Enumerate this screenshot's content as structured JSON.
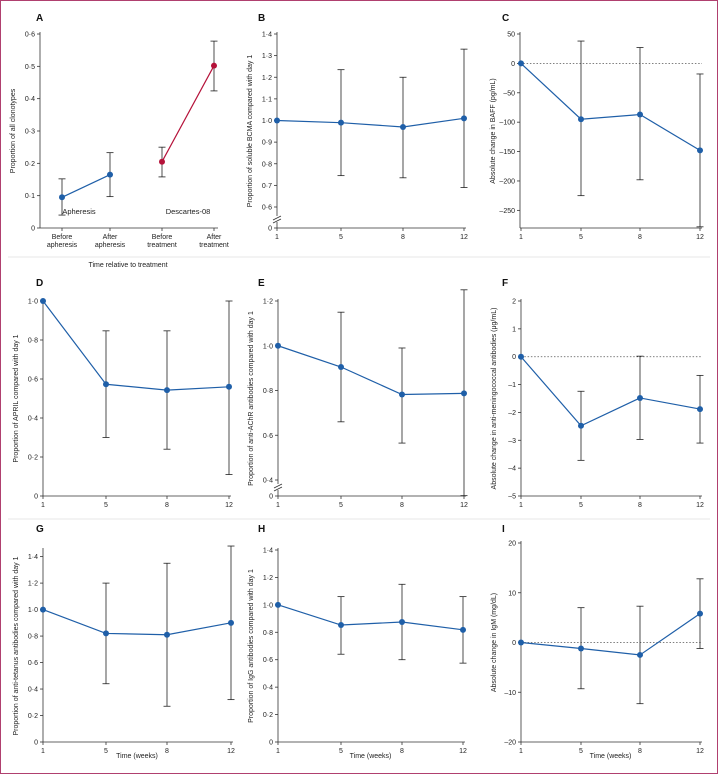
{
  "chart_data": [
    {
      "id": "A",
      "type": "scatter",
      "label": "A",
      "ylabel": "Proportion of all clonotypes",
      "xlabel": "Time relative to treatment",
      "ylim": [
        0,
        0.6
      ],
      "yticks": [
        0,
        0.1,
        0.2,
        0.3,
        0.4,
        0.5,
        0.6
      ],
      "ytick_labels": [
        "0",
        "0·1",
        "0·2",
        "0·3",
        "0·4",
        "0·5",
        "0·6"
      ],
      "categories": [
        "Before|apheresis",
        "After|apheresis",
        "Before|treatment",
        "After|treatment"
      ],
      "series": [
        {
          "name": "Apheresis",
          "color": "#1f5fa8",
          "x": [
            0,
            1
          ],
          "values": [
            0.095,
            0.165
          ],
          "lower": [
            0.04,
            0.097
          ],
          "upper": [
            0.152,
            0.233
          ]
        },
        {
          "name": "Descartes-08",
          "color": "#b5123a",
          "x": [
            2,
            3
          ],
          "values": [
            0.205,
            0.502
          ],
          "lower": [
            0.158,
            0.424
          ],
          "upper": [
            0.25,
            0.578
          ]
        }
      ]
    },
    {
      "id": "B",
      "type": "line",
      "label": "B",
      "ylabel": "Proportion of soluble BCMA compared with day 1",
      "xlabel": "",
      "broken_axis": true,
      "ylim": [
        0.55,
        1.4
      ],
      "yticks": [
        0.6,
        0.7,
        0.8,
        0.9,
        1.0,
        1.1,
        1.2,
        1.3,
        1.4
      ],
      "ytick_labels": [
        "0·6",
        "0·7",
        "0·8",
        "0·9",
        "1·0",
        "1·1",
        "1·2",
        "1·3",
        "1·4"
      ],
      "categories": [
        "1",
        "5",
        "8",
        "12"
      ],
      "series": [
        {
          "color": "#1f5fa8",
          "values": [
            1.0,
            0.99,
            0.97,
            1.01
          ],
          "lower": [
            1.0,
            0.745,
            0.735,
            0.69
          ],
          "upper": [
            1.0,
            1.235,
            1.2,
            1.33
          ]
        }
      ]
    },
    {
      "id": "C",
      "type": "line",
      "label": "C",
      "ylabel": "Absolute change in BAFF (pg/mL)",
      "xlabel": "",
      "ylim": [
        -280,
        50
      ],
      "yticks": [
        50,
        0,
        -50,
        -100,
        -150,
        -200,
        -250
      ],
      "ytick_labels": [
        "50",
        "0",
        "–50",
        "–100",
        "–150",
        "–200",
        "–250"
      ],
      "reference_line": 0,
      "categories": [
        "1",
        "5",
        "8",
        "12"
      ],
      "series": [
        {
          "color": "#1f5fa8",
          "values": [
            0,
            -95,
            -87,
            -148
          ],
          "lower": [
            0,
            -225,
            -198,
            -278
          ],
          "upper": [
            0,
            38,
            27,
            -18
          ]
        }
      ]
    },
    {
      "id": "D",
      "type": "line",
      "label": "D",
      "ylabel": "Proportion of APRIL compared with day 1",
      "xlabel": "",
      "ylim": [
        0,
        1.0
      ],
      "yticks": [
        0,
        0.2,
        0.4,
        0.6,
        0.8,
        1.0
      ],
      "ytick_labels": [
        "0",
        "0·2",
        "0·4",
        "0·6",
        "0·8",
        "1·0"
      ],
      "categories": [
        "1",
        "5",
        "8",
        "12"
      ],
      "series": [
        {
          "color": "#1f5fa8",
          "values": [
            1.0,
            0.573,
            0.543,
            0.56
          ],
          "lower": [
            1.0,
            0.3,
            0.24,
            0.11
          ],
          "upper": [
            1.0,
            0.847,
            0.847,
            1.0
          ]
        }
      ]
    },
    {
      "id": "E",
      "type": "line",
      "label": "E",
      "ylabel": "Proportion of anti-AChR antibodies compared with day 1",
      "xlabel": "",
      "broken_axis": true,
      "ylim": [
        0.3,
        1.3
      ],
      "yticks": [
        0.4,
        0.6,
        0.8,
        1.0,
        1.2
      ],
      "ytick_labels": [
        "0·4",
        "0·6",
        "0·8",
        "1·0",
        "1·2"
      ],
      "categories": [
        "1",
        "5",
        "8",
        "12"
      ],
      "series": [
        {
          "color": "#1f5fa8",
          "values": [
            1.0,
            0.905,
            0.782,
            0.787
          ],
          "lower": [
            1.0,
            0.66,
            0.565,
            0.33
          ],
          "upper": [
            1.0,
            1.15,
            0.99,
            1.25
          ]
        }
      ]
    },
    {
      "id": "F",
      "type": "line",
      "label": "F",
      "ylabel": "Absolute change in anti-meningococcal antibodies (μg/mL)",
      "xlabel": "",
      "ylim": [
        -5,
        2
      ],
      "yticks": [
        2,
        1,
        0,
        -1,
        -2,
        -3,
        -4,
        -5
      ],
      "ytick_labels": [
        "2",
        "1",
        "0",
        "–1",
        "–2",
        "–3",
        "–4",
        "–5"
      ],
      "reference_line": 0,
      "categories": [
        "1",
        "5",
        "8",
        "12"
      ],
      "series": [
        {
          "color": "#1f5fa8",
          "values": [
            0,
            -2.48,
            -1.48,
            -1.88
          ],
          "lower": [
            0,
            -3.72,
            -2.97,
            -3.1
          ],
          "upper": [
            0,
            -1.24,
            0.02,
            -0.67
          ]
        }
      ]
    },
    {
      "id": "G",
      "type": "line",
      "label": "G",
      "ylabel": "Proportion of anti-tetanus antibodies compared with day 1",
      "xlabel": "Time (weeks)",
      "ylim": [
        0,
        1.45
      ],
      "yticks": [
        0,
        0.2,
        0.4,
        0.6,
        0.8,
        1.0,
        1.2,
        1.4
      ],
      "ytick_labels": [
        "0",
        "0·2",
        "0·4",
        "0·6",
        "0·8",
        "1·0",
        "1·2",
        "1·4"
      ],
      "categories": [
        "1",
        "5",
        "8",
        "12"
      ],
      "series": [
        {
          "color": "#1f5fa8",
          "values": [
            1.0,
            0.82,
            0.81,
            0.9
          ],
          "lower": [
            1.0,
            0.44,
            0.27,
            0.32
          ],
          "upper": [
            1.0,
            1.2,
            1.35,
            1.48
          ]
        }
      ]
    },
    {
      "id": "H",
      "type": "line",
      "label": "H",
      "ylabel": "Proportion of IgG antibodies compared with day 1",
      "xlabel": "Time (weeks)",
      "ylim": [
        0,
        1.4
      ],
      "yticks": [
        0,
        0.2,
        0.4,
        0.6,
        0.8,
        1.0,
        1.2,
        1.4
      ],
      "ytick_labels": [
        "0",
        "0·2",
        "0·4",
        "0·6",
        "0·8",
        "1·0",
        "1·2",
        "1·4"
      ],
      "categories": [
        "1",
        "5",
        "8",
        "12"
      ],
      "series": [
        {
          "color": "#1f5fa8",
          "values": [
            1.0,
            0.853,
            0.875,
            0.818
          ],
          "lower": [
            1.0,
            0.64,
            0.6,
            0.575
          ],
          "upper": [
            1.0,
            1.06,
            1.15,
            1.06
          ]
        }
      ]
    },
    {
      "id": "I",
      "type": "line",
      "label": "I",
      "ylabel": "Absolute change in IgM (mg/dL)",
      "xlabel": "Time (weeks)",
      "ylim": [
        -20,
        20
      ],
      "yticks": [
        20,
        10,
        0,
        -10,
        -20
      ],
      "ytick_labels": [
        "20",
        "10",
        "0",
        "–10",
        "–20"
      ],
      "reference_line": 0,
      "categories": [
        "1",
        "5",
        "8",
        "12"
      ],
      "series": [
        {
          "color": "#1f5fa8",
          "values": [
            0,
            -1.2,
            -2.5,
            5.8
          ],
          "lower": [
            0,
            -9.3,
            -12.3,
            -1.2
          ],
          "upper": [
            0,
            7.0,
            7.3,
            12.8
          ]
        }
      ]
    }
  ]
}
